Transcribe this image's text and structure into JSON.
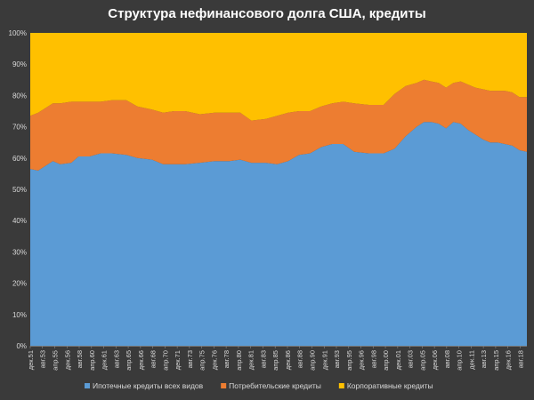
{
  "chart_data": {
    "type": "area",
    "stacked": true,
    "percent": true,
    "title": "Структура нефинансового долга США, кредиты",
    "xlabel": "",
    "ylabel": "",
    "ylim": [
      0,
      100
    ],
    "yticks": [
      "0%",
      "10%",
      "20%",
      "30%",
      "40%",
      "50%",
      "60%",
      "70%",
      "80%",
      "90%",
      "100%"
    ],
    "x_start": 1951.92,
    "x_end": 2019.5,
    "xticks": [
      {
        "label": "дек.51",
        "x": 1951.92
      },
      {
        "label": "авг.53",
        "x": 1953.58
      },
      {
        "label": "апр.55",
        "x": 1955.25
      },
      {
        "label": "дек.56",
        "x": 1956.92
      },
      {
        "label": "авг.58",
        "x": 1958.58
      },
      {
        "label": "апр.60",
        "x": 1960.25
      },
      {
        "label": "дек.61",
        "x": 1961.92
      },
      {
        "label": "авг.63",
        "x": 1963.58
      },
      {
        "label": "апр.65",
        "x": 1965.25
      },
      {
        "label": "дек.66",
        "x": 1966.92
      },
      {
        "label": "авг.68",
        "x": 1968.58
      },
      {
        "label": "апр.70",
        "x": 1970.25
      },
      {
        "label": "дек.71",
        "x": 1971.92
      },
      {
        "label": "авг.73",
        "x": 1973.58
      },
      {
        "label": "апр.75",
        "x": 1975.25
      },
      {
        "label": "дек.76",
        "x": 1976.92
      },
      {
        "label": "авг.78",
        "x": 1978.58
      },
      {
        "label": "апр.80",
        "x": 1980.25
      },
      {
        "label": "дек.81",
        "x": 1981.92
      },
      {
        "label": "авг.83",
        "x": 1983.58
      },
      {
        "label": "апр.85",
        "x": 1985.25
      },
      {
        "label": "дек.86",
        "x": 1986.92
      },
      {
        "label": "авг.88",
        "x": 1988.58
      },
      {
        "label": "апр.90",
        "x": 1990.25
      },
      {
        "label": "дек.91",
        "x": 1991.92
      },
      {
        "label": "авг.93",
        "x": 1993.58
      },
      {
        "label": "апр.95",
        "x": 1995.25
      },
      {
        "label": "дек.96",
        "x": 1996.92
      },
      {
        "label": "авг.98",
        "x": 1998.58
      },
      {
        "label": "апр.00",
        "x": 2000.25
      },
      {
        "label": "дек.01",
        "x": 2001.92
      },
      {
        "label": "авг.03",
        "x": 2003.58
      },
      {
        "label": "апр.05",
        "x": 2005.25
      },
      {
        "label": "дек.06",
        "x": 2006.92
      },
      {
        "label": "авг.08",
        "x": 2008.58
      },
      {
        "label": "апр.10",
        "x": 2010.25
      },
      {
        "label": "дек.11",
        "x": 2011.92
      },
      {
        "label": "авг.13",
        "x": 2013.58
      },
      {
        "label": "апр.15",
        "x": 2015.25
      },
      {
        "label": "дек.16",
        "x": 2016.92
      },
      {
        "label": "авг.18",
        "x": 2018.58
      }
    ],
    "x": [
      1951.92,
      1953.0,
      1955.0,
      1956.0,
      1957.5,
      1958.5,
      1960.0,
      1961.5,
      1963.0,
      1965.0,
      1966.5,
      1968.5,
      1970.0,
      1971.5,
      1973.0,
      1975.0,
      1977.0,
      1979.0,
      1980.5,
      1982.0,
      1984.0,
      1985.5,
      1987.0,
      1988.5,
      1990.0,
      1991.5,
      1993.0,
      1994.5,
      1996.0,
      1998.0,
      2000.0,
      2001.5,
      2003.0,
      2004.5,
      2005.5,
      2006.5,
      2007.5,
      2008.5,
      2009.5,
      2010.5,
      2011.5,
      2012.5,
      2013.5,
      2014.5,
      2015.5,
      2016.5,
      2017.5,
      2018.5,
      2019.5
    ],
    "series": [
      {
        "name": "Ипотечные кредиты всех видов",
        "color": "#5b9bd5",
        "values": [
          56.5,
          56,
          59,
          58,
          58.5,
          60.5,
          60.5,
          61.5,
          61.5,
          61,
          60,
          59.5,
          58,
          58,
          58,
          58.5,
          59,
          59,
          59.5,
          58.5,
          58.5,
          58,
          59,
          61,
          61.5,
          63.5,
          64.5,
          64.5,
          62,
          61.5,
          61.5,
          63,
          67,
          70,
          71.5,
          71.5,
          71,
          69.5,
          71.5,
          71,
          69,
          67.5,
          66,
          65,
          65,
          64.5,
          64,
          62.5,
          62
        ]
      },
      {
        "name": "Потребительские кредиты",
        "color": "#ed7d31",
        "values": [
          17,
          18.5,
          18.5,
          19.5,
          19.5,
          17.5,
          17.5,
          16.5,
          17,
          17.5,
          16.5,
          16,
          16.5,
          17,
          17,
          15.5,
          15.5,
          15.5,
          15,
          13.5,
          14,
          15.5,
          15.5,
          14,
          13.5,
          13,
          13,
          13.5,
          15.5,
          15.5,
          15.5,
          17.5,
          16,
          14,
          13.5,
          13,
          13,
          13,
          12.5,
          13.5,
          14.5,
          15,
          16,
          16.5,
          16.5,
          17,
          17,
          17,
          17.5
        ]
      },
      {
        "name": "Корпоративные кредиты",
        "color": "#ffc000",
        "values": [
          26.5,
          25.5,
          22.5,
          22.5,
          22,
          22,
          22,
          22,
          21.5,
          21.5,
          23.5,
          24.5,
          25.5,
          25,
          25,
          26,
          25.5,
          25.5,
          25.5,
          28,
          27.5,
          26.5,
          25.5,
          25,
          25,
          23.5,
          22.5,
          22,
          22.5,
          23,
          23,
          19.5,
          17,
          16,
          15,
          15.5,
          16,
          17.5,
          16,
          15.5,
          16.5,
          17.5,
          18,
          18.5,
          18.5,
          18.5,
          19,
          20.5,
          20.5
        ]
      }
    ],
    "legend_position": "bottom"
  }
}
